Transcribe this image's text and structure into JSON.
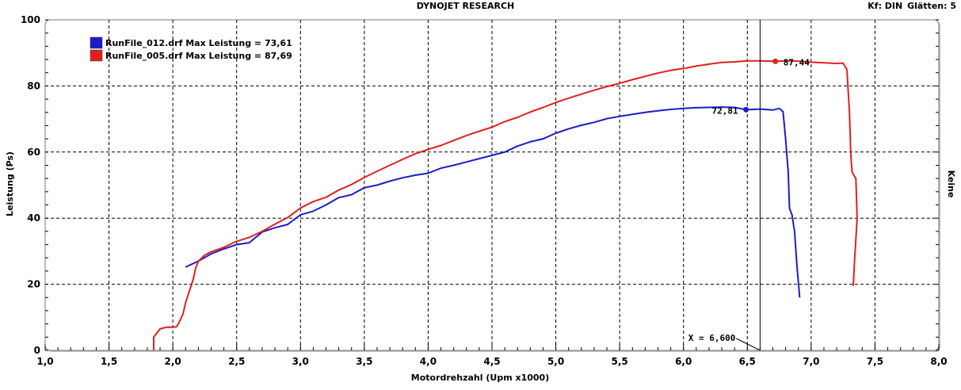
{
  "header": {
    "title": "DYNOJET RESEARCH",
    "kf": "Kf: DIN",
    "glaetten": "Glätten: 5"
  },
  "chart_data": {
    "type": "line",
    "xlabel": "Motordrehzahl (Upm x1000)",
    "ylabel": "Leistung (Ps)",
    "right_label": "Keine",
    "xlim": [
      1.0,
      8.0
    ],
    "ylim": [
      0,
      100
    ],
    "x_ticks": [
      "1,0",
      "1,5",
      "2,0",
      "2,5",
      "3,0",
      "3,5",
      "4,0",
      "4,5",
      "5,0",
      "5,5",
      "6,0",
      "6,5",
      "7,0",
      "7,5",
      "8,0"
    ],
    "y_ticks": [
      "0",
      "20",
      "40",
      "60",
      "80",
      "100"
    ],
    "grid": true,
    "legend_position": "top-left",
    "series": [
      {
        "name": "RunFile_012.drf Max Leistung = 73,61",
        "color": "#1c1cc8",
        "marker": {
          "x": 6.49,
          "y": 72.81,
          "label": "72,81"
        },
        "points": [
          [
            2.1,
            25.2
          ],
          [
            2.2,
            27.0
          ],
          [
            2.3,
            29.2
          ],
          [
            2.4,
            30.7
          ],
          [
            2.5,
            32.0
          ],
          [
            2.6,
            32.6
          ],
          [
            2.7,
            35.8
          ],
          [
            2.8,
            37.1
          ],
          [
            2.9,
            38.1
          ],
          [
            3.0,
            41.0
          ],
          [
            3.1,
            42.1
          ],
          [
            3.2,
            44.0
          ],
          [
            3.3,
            46.2
          ],
          [
            3.4,
            47.1
          ],
          [
            3.5,
            49.2
          ],
          [
            3.6,
            50.0
          ],
          [
            3.7,
            51.2
          ],
          [
            3.8,
            52.2
          ],
          [
            3.9,
            53.0
          ],
          [
            4.0,
            53.6
          ],
          [
            4.1,
            55.1
          ],
          [
            4.2,
            56.0
          ],
          [
            4.3,
            57.0
          ],
          [
            4.4,
            58.0
          ],
          [
            4.5,
            59.0
          ],
          [
            4.6,
            60.0
          ],
          [
            4.7,
            61.8
          ],
          [
            4.8,
            63.1
          ],
          [
            4.9,
            64.0
          ],
          [
            5.0,
            65.7
          ],
          [
            5.1,
            67.0
          ],
          [
            5.2,
            68.1
          ],
          [
            5.3,
            69.0
          ],
          [
            5.4,
            70.1
          ],
          [
            5.5,
            70.8
          ],
          [
            5.6,
            71.4
          ],
          [
            5.7,
            72.0
          ],
          [
            5.8,
            72.5
          ],
          [
            5.9,
            72.9
          ],
          [
            6.0,
            73.2
          ],
          [
            6.1,
            73.4
          ],
          [
            6.2,
            73.5
          ],
          [
            6.3,
            73.6
          ],
          [
            6.4,
            73.5
          ],
          [
            6.49,
            72.81
          ],
          [
            6.6,
            73.0
          ],
          [
            6.7,
            72.7
          ],
          [
            6.75,
            73.2
          ],
          [
            6.78,
            72.2
          ],
          [
            6.8,
            64.0
          ],
          [
            6.82,
            54.0
          ],
          [
            6.83,
            43.0
          ],
          [
            6.85,
            41.0
          ],
          [
            6.87,
            36.0
          ],
          [
            6.89,
            25.0
          ],
          [
            6.91,
            16.0
          ]
        ]
      },
      {
        "name": "RunFile_005.drf Max Leistung = 87,69",
        "color": "#e02020",
        "marker": {
          "x": 6.72,
          "y": 87.44,
          "label": "87,44"
        },
        "points": [
          [
            1.85,
            0.0
          ],
          [
            1.85,
            4.0
          ],
          [
            1.87,
            5.0
          ],
          [
            1.9,
            6.5
          ],
          [
            1.95,
            7.0
          ],
          [
            2.0,
            7.0
          ],
          [
            2.03,
            7.2
          ],
          [
            2.05,
            8.5
          ],
          [
            2.08,
            11.0
          ],
          [
            2.1,
            14.5
          ],
          [
            2.13,
            18.0
          ],
          [
            2.16,
            21.5
          ],
          [
            2.18,
            25.0
          ],
          [
            2.2,
            27.0
          ],
          [
            2.25,
            28.8
          ],
          [
            2.3,
            29.8
          ],
          [
            2.4,
            31.2
          ],
          [
            2.5,
            33.0
          ],
          [
            2.6,
            34.2
          ],
          [
            2.7,
            36.0
          ],
          [
            2.8,
            38.2
          ],
          [
            2.9,
            40.2
          ],
          [
            3.0,
            43.1
          ],
          [
            3.1,
            45.0
          ],
          [
            3.2,
            46.3
          ],
          [
            3.3,
            48.5
          ],
          [
            3.4,
            50.2
          ],
          [
            3.5,
            52.3
          ],
          [
            3.6,
            54.2
          ],
          [
            3.7,
            56.0
          ],
          [
            3.8,
            57.8
          ],
          [
            3.9,
            59.5
          ],
          [
            4.0,
            60.8
          ],
          [
            4.1,
            62.0
          ],
          [
            4.2,
            63.5
          ],
          [
            4.3,
            65.0
          ],
          [
            4.4,
            66.3
          ],
          [
            4.5,
            67.5
          ],
          [
            4.6,
            69.2
          ],
          [
            4.7,
            70.5
          ],
          [
            4.8,
            72.1
          ],
          [
            4.9,
            73.5
          ],
          [
            5.0,
            75.0
          ],
          [
            5.1,
            76.3
          ],
          [
            5.2,
            77.5
          ],
          [
            5.3,
            78.7
          ],
          [
            5.4,
            79.8
          ],
          [
            5.5,
            80.8
          ],
          [
            5.6,
            81.9
          ],
          [
            5.7,
            82.9
          ],
          [
            5.8,
            83.9
          ],
          [
            5.9,
            84.7
          ],
          [
            6.0,
            85.3
          ],
          [
            6.1,
            86.0
          ],
          [
            6.2,
            86.6
          ],
          [
            6.3,
            87.1
          ],
          [
            6.4,
            87.3
          ],
          [
            6.5,
            87.6
          ],
          [
            6.6,
            87.6
          ],
          [
            6.72,
            87.44
          ],
          [
            6.8,
            87.6
          ],
          [
            6.9,
            87.5
          ],
          [
            7.0,
            87.2
          ],
          [
            7.1,
            87.0
          ],
          [
            7.2,
            86.8
          ],
          [
            7.25,
            86.9
          ],
          [
            7.28,
            85.0
          ],
          [
            7.3,
            72.0
          ],
          [
            7.31,
            60.0
          ],
          [
            7.32,
            54.0
          ],
          [
            7.35,
            52.0
          ],
          [
            7.36,
            40.0
          ],
          [
            7.34,
            27.0
          ],
          [
            7.33,
            19.5
          ]
        ]
      }
    ],
    "annotations": [
      {
        "text": "X = 6,600",
        "x": 6.6
      }
    ]
  }
}
